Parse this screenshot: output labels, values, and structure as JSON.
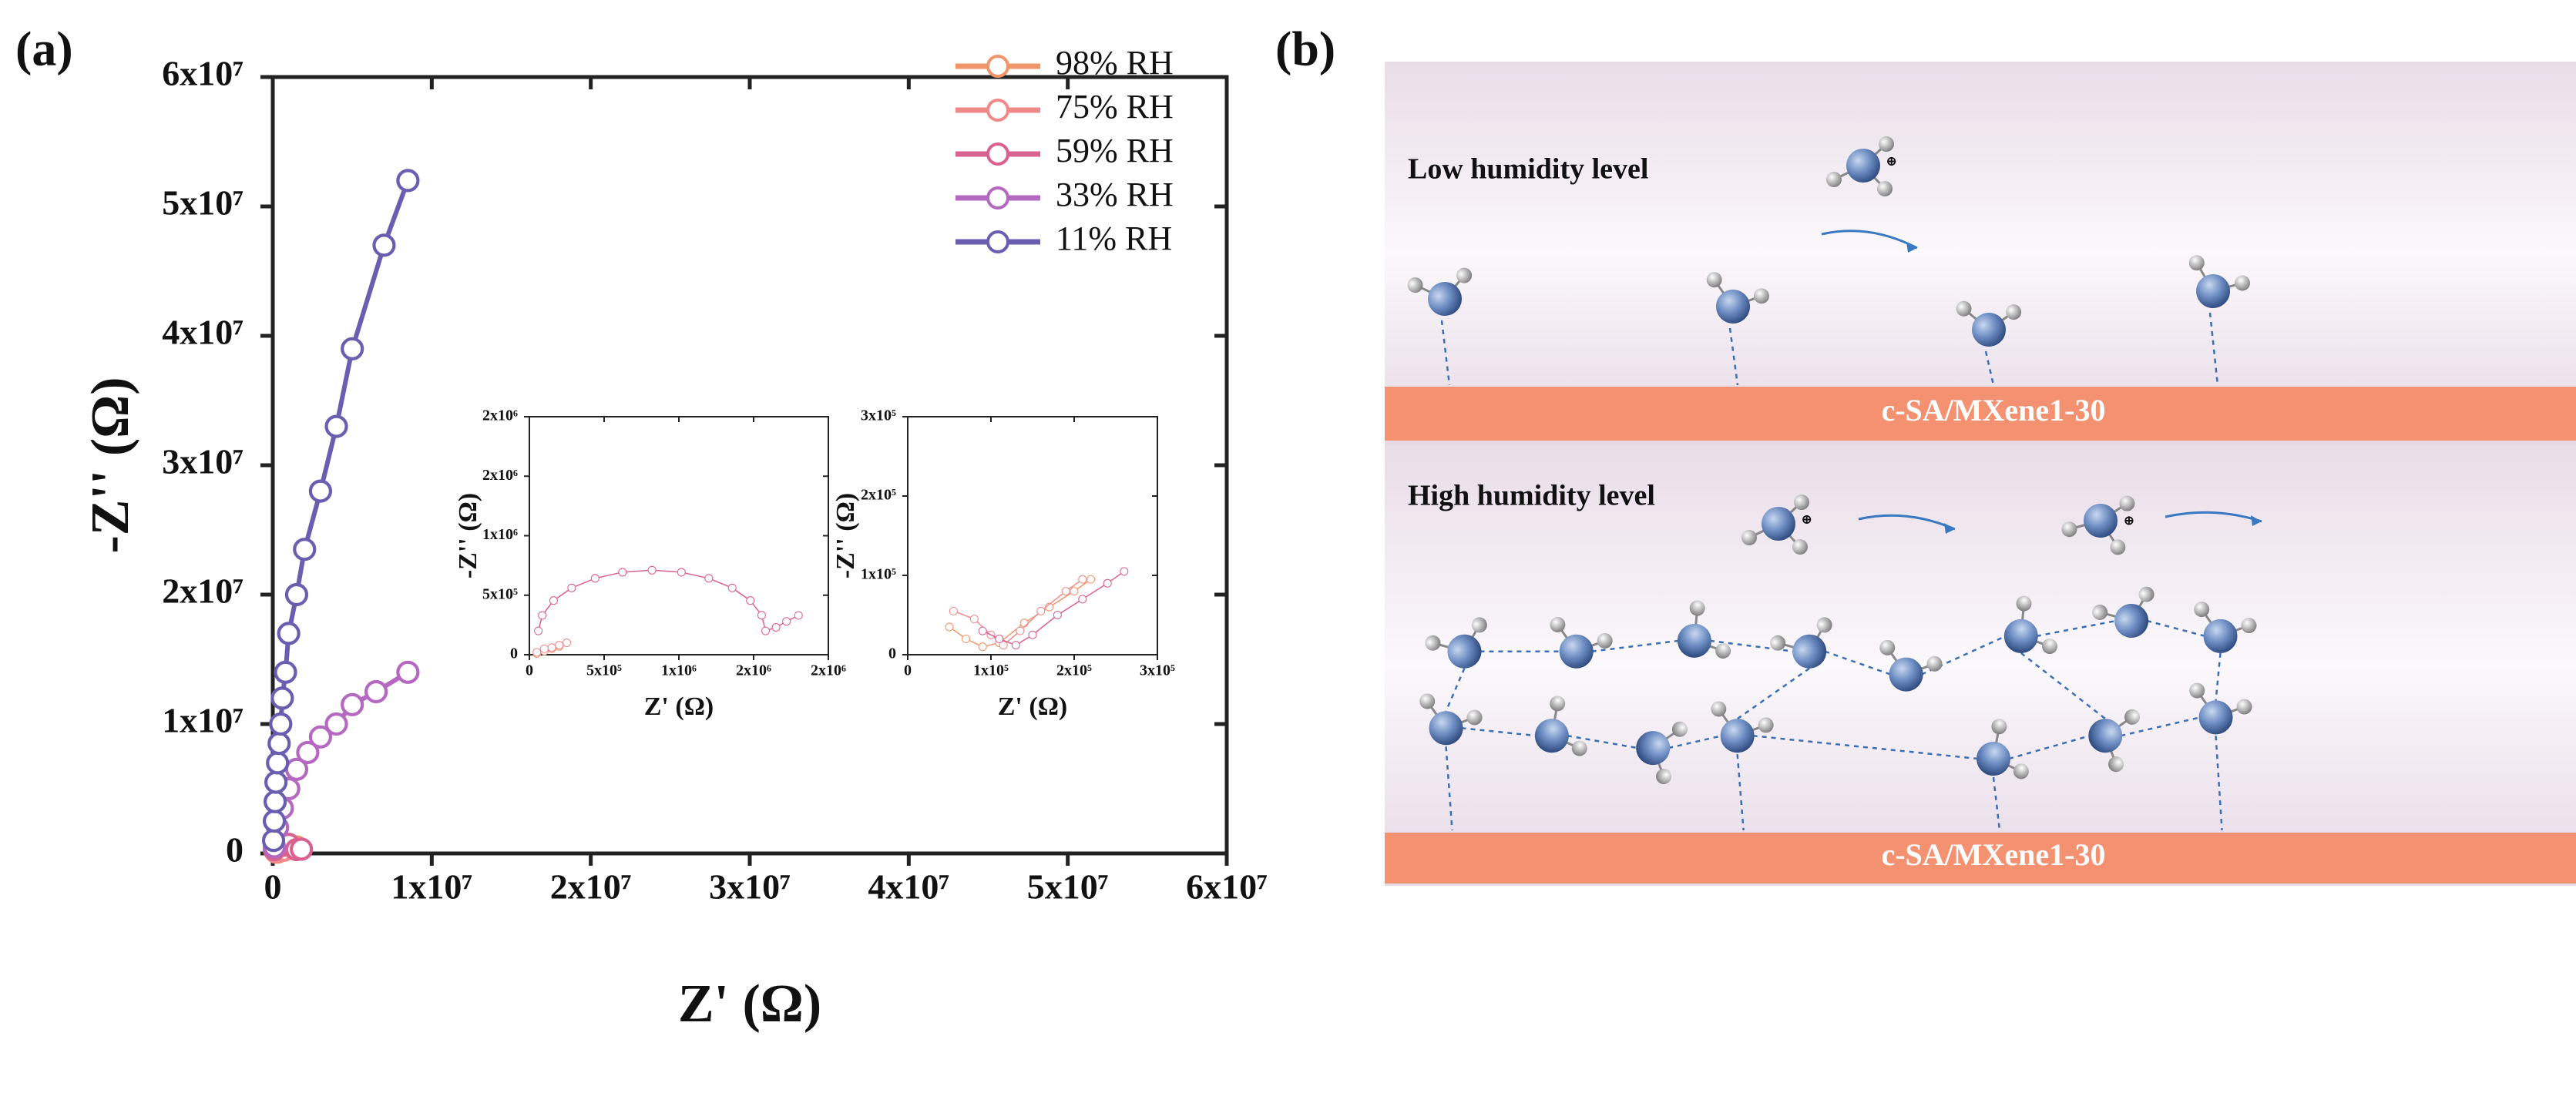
{
  "panel_labels": [
    "(a)",
    "(b)"
  ],
  "chart_data": [
    {
      "type": "line",
      "xlabel": "Z' (Ω)",
      "ylabel": "-Z'' (Ω)",
      "legend": "upper right",
      "xlim": [
        0,
        60000000
      ],
      "ylim": [
        0,
        60000000
      ],
      "xticks": [
        0,
        {
          "value": 10000000,
          "label": "1x10⁷"
        },
        {
          "value": 20000000,
          "label": "2x10⁷"
        },
        {
          "value": 30000000,
          "label": "3x10⁷"
        },
        {
          "value": 40000000,
          "label": "4x10⁷"
        },
        {
          "value": 50000000,
          "label": "5x10⁷"
        },
        {
          "value": 60000000,
          "label": "6x10⁷"
        }
      ],
      "yticks": [
        0,
        {
          "value": 10000000,
          "label": "1x10⁷"
        },
        {
          "value": 20000000,
          "label": "2x10⁷"
        },
        {
          "value": 30000000,
          "label": "3x10⁷"
        },
        {
          "value": 40000000,
          "label": "4x10⁷"
        },
        {
          "value": 50000000,
          "label": "5x10⁷"
        },
        {
          "value": 60000000,
          "label": "6x10⁷"
        }
      ],
      "series": [
        {
          "name": "98% RH",
          "color": "#f0956a",
          "x": [
            300000,
            800000,
            1500000
          ],
          "y": [
            100000,
            300000,
            500000
          ]
        },
        {
          "name": "75% RH",
          "color": "#f08a8a",
          "x": [
            200000,
            700000,
            1300000
          ],
          "y": [
            100000,
            250000,
            400000
          ]
        },
        {
          "name": "59% RH",
          "color": "#d9608f",
          "x": [
            100000,
            500000,
            1000000,
            1500000,
            1800000
          ],
          "y": [
            300000,
            600000,
            700000,
            300000,
            330000
          ]
        },
        {
          "name": "33% RH",
          "color": "#b468c0",
          "x": [
            100000,
            300000,
            600000,
            1000000,
            1500000,
            2200000,
            3000000,
            4000000,
            5000000,
            6500000,
            8500000
          ],
          "y": [
            500000,
            2000000,
            3500000,
            5000000,
            6500000,
            7800000,
            9000000,
            10000000,
            11500000,
            12500000,
            14000000
          ]
        },
        {
          "name": "11% RH",
          "color": "#6a5eb0",
          "x": [
            50000,
            100000,
            150000,
            200000,
            300000,
            400000,
            500000,
            600000,
            800000,
            1000000,
            1500000,
            2000000,
            3000000,
            4000000,
            5000000,
            7000000,
            8500000
          ],
          "y": [
            1000000,
            2500000,
            4000000,
            5500000,
            7000000,
            8500000,
            10000000,
            12000000,
            14000000,
            17000000,
            20000000,
            23500000,
            28000000,
            33000000,
            39000000,
            47000000,
            52000000
          ]
        }
      ]
    },
    {
      "type": "line",
      "xlabel": "Z' (Ω)",
      "ylabel": "-Z'' (Ω)",
      "xlim": [
        0,
        2000000
      ],
      "ylim": [
        0,
        2000000
      ],
      "xticks": [
        0,
        {
          "value": 500000,
          "label": "5x10⁵"
        },
        {
          "value": 1000000,
          "label": "1x10⁶"
        },
        {
          "value": 1500000,
          "label": "2x10⁶"
        },
        {
          "value": 2000000,
          "label": "2x10⁶"
        }
      ],
      "yticks": [
        0,
        {
          "value": 500000,
          "label": "5x10⁵"
        },
        {
          "value": 1000000,
          "label": "1x10⁶"
        },
        {
          "value": 1500000,
          "label": "2x10⁶"
        },
        {
          "value": 2000000,
          "label": "2x10⁶"
        }
      ],
      "series": [
        {
          "color": "#f0956a",
          "x": [
            50000,
            100000,
            150000,
            200000
          ],
          "y": [
            10000,
            30000,
            50000,
            70000
          ]
        },
        {
          "color": "#f08a8a",
          "x": [
            50000,
            100000,
            150000,
            200000,
            250000
          ],
          "y": [
            20000,
            50000,
            60000,
            80000,
            100000
          ]
        },
        {
          "color": "#d9608f",
          "x": [
            60000,
            86000,
            162000,
            283000,
            440000,
            623000,
            820000,
            1017000,
            1200000,
            1357000,
            1478000,
            1554000,
            1580000,
            1650000,
            1720000,
            1800000
          ],
          "y": [
            200000,
            330000,
            455000,
            561000,
            642000,
            693000,
            710000,
            693000,
            642000,
            561000,
            455000,
            332000,
            200000,
            230000,
            280000,
            330000
          ]
        }
      ]
    },
    {
      "type": "line",
      "xlabel": "Z' (Ω)",
      "ylabel": "-Z'' (Ω)",
      "xlim": [
        0,
        300000
      ],
      "ylim": [
        0,
        300000
      ],
      "xticks": [
        0,
        {
          "value": 100000,
          "label": "1x10⁵"
        },
        {
          "value": 200000,
          "label": "2x10⁵"
        },
        {
          "value": 300000,
          "label": "3x10⁵"
        }
      ],
      "yticks": [
        0,
        {
          "value": 100000,
          "label": "1x10⁵"
        },
        {
          "value": 200000,
          "label": "2x10⁵"
        },
        {
          "value": 300000,
          "label": "3x10⁵"
        }
      ],
      "series": [
        {
          "color": "#f0956a",
          "x": [
            50000,
            70000,
            90000,
            110000,
            140000,
            170000,
            200000,
            220000
          ],
          "y": [
            35000,
            20000,
            10000,
            15000,
            40000,
            60000,
            80000,
            95000
          ]
        },
        {
          "color": "#f08a8a",
          "x": [
            55000,
            80000,
            100000,
            115000,
            135000,
            160000,
            190000,
            210000
          ],
          "y": [
            55000,
            45000,
            25000,
            12000,
            30000,
            55000,
            80000,
            95000
          ]
        },
        {
          "color": "#d9608f",
          "x": [
            90000,
            110000,
            130000,
            150000,
            180000,
            210000,
            240000,
            260000
          ],
          "y": [
            30000,
            20000,
            12000,
            25000,
            50000,
            70000,
            90000,
            105000
          ]
        }
      ]
    }
  ],
  "diagram": {
    "top_panel": {
      "title": "Low humidity level",
      "substrate": "c-SA/MXene1-30"
    },
    "bottom_panel": {
      "title": "High humidity level",
      "substrate": "c-SA/MXene1-30"
    },
    "ion_charge": "⊕"
  }
}
